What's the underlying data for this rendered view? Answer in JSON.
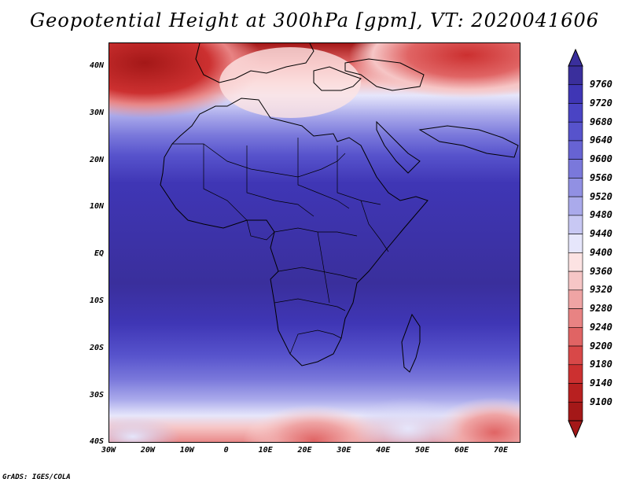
{
  "title": "Geopotential Height at 300hPa [gpm], VT: 2020041606",
  "footer": "GrADS: IGES/COLA",
  "map": {
    "projection": "latlon",
    "lon_range": [
      -30,
      75
    ],
    "lat_range": [
      -40,
      45
    ],
    "lat_ticks": [
      "40N",
      "30N",
      "20N",
      "10N",
      "EQ",
      "10S",
      "20S",
      "30S",
      "40S"
    ],
    "lon_ticks": [
      "30W",
      "20W",
      "10W",
      "0",
      "10E",
      "20E",
      "30E",
      "40E",
      "50E",
      "60E",
      "70E"
    ]
  },
  "colorbar": {
    "levels": [
      "9760",
      "9720",
      "9680",
      "9640",
      "9600",
      "9560",
      "9520",
      "9480",
      "9440",
      "9400",
      "9360",
      "9320",
      "9280",
      "9240",
      "9200",
      "9180",
      "9140",
      "9100"
    ],
    "colors_top_to_bottom": [
      "#3a2f9c",
      "#3f36b5",
      "#4a44c4",
      "#5753cc",
      "#6763d3",
      "#7a78db",
      "#9190e3",
      "#aaaaeb",
      "#c8c8f3",
      "#e6e6fb",
      "#fce3e3",
      "#f6c6c6",
      "#efa4a4",
      "#e88383",
      "#e06464",
      "#d84848",
      "#cc3030",
      "#b82020",
      "#a41818"
    ],
    "top_arrow_color": "#3a2f9c",
    "bottom_arrow_color": "#a41818"
  }
}
